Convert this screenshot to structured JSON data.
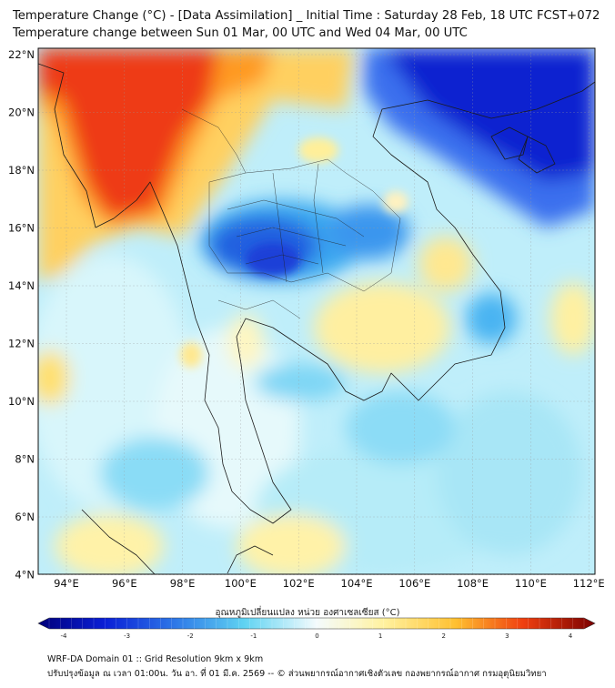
{
  "header": {
    "title_line1": "Temperature Change (°C) - [Data Assimilation] _ Initial Time : Saturday 28 Feb, 18 UTC FCST+072",
    "title_line2": "Temperature change between Sun 01 Mar, 00 UTC and Wed 04 Mar, 00 UTC"
  },
  "map": {
    "lon_labels": [
      "94°E",
      "96°E",
      "98°E",
      "100°E",
      "102°E",
      "104°E",
      "106°E",
      "108°E",
      "110°E",
      "112°E"
    ],
    "lat_labels": [
      "22°N",
      "20°N",
      "18°N",
      "16°N",
      "14°N",
      "12°N",
      "10°N",
      "8°N",
      "6°N",
      "4°N"
    ],
    "grid": true,
    "colors": {
      "strong_warm": "#e8300e",
      "warm": "#ff9a20",
      "mild_warm": "#fff2a0",
      "neutral": "#dff6fc",
      "cool": "#5fd3f2",
      "strong_cool": "#0a1fd6"
    }
  },
  "colorbar": {
    "label": "อุณหภูมิเปลี่ยนแปลง หน่วย องศาเซลเซียส (°C)",
    "ticks": [
      "-4",
      "-3",
      "-2",
      "-1",
      "0",
      "1",
      "2",
      "3",
      "4"
    ],
    "min": -4,
    "max": 4
  },
  "footer": {
    "line1": "WRF-DA Domain 01 :: Grid Resolution 9km x 9km",
    "line2": "ปรับปรุงข้อมูล ณ เวลา 01:00น. วัน อา. ที่ 01 มี.ค. 2569 -- © ส่วนพยากรณ์อากาศเชิงตัวเลข กองพยากรณ์อากาศ กรมอุตุนิยมวิทยา"
  }
}
